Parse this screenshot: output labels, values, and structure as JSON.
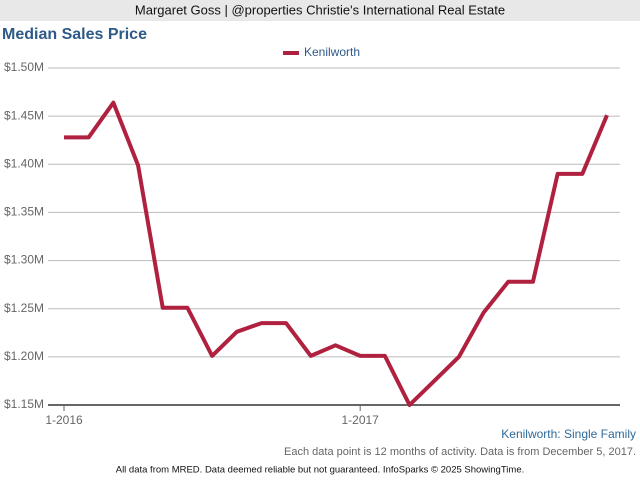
{
  "header": "Margaret Goss | @properties Christie's International Real Estate",
  "chart_data": {
    "type": "line",
    "title": "Median Sales Price",
    "categories": [
      "1-2016",
      null,
      null,
      null,
      null,
      null,
      null,
      null,
      null,
      null,
      null,
      null,
      "1-2017",
      null,
      null,
      null,
      null,
      null,
      null,
      null,
      null,
      null,
      null
    ],
    "series": [
      {
        "name": "Kenilworth",
        "color": "#b0213f",
        "values": [
          1428000,
          1428000,
          1464000,
          1399000,
          1251000,
          1251000,
          1201000,
          1226000,
          1235000,
          1235000,
          1201000,
          1212000,
          1201000,
          1201000,
          1150000,
          1175000,
          1200000,
          1246000,
          1278000,
          1278000,
          1390000,
          1390000,
          1451000
        ]
      }
    ],
    "ylim": [
      1150000,
      1500000
    ],
    "yticks": [
      {
        "value": 1150000,
        "label": "$1.15M"
      },
      {
        "value": 1200000,
        "label": "$1.20M"
      },
      {
        "value": 1250000,
        "label": "$1.25M"
      },
      {
        "value": 1300000,
        "label": "$1.30M"
      },
      {
        "value": 1350000,
        "label": "$1.35M"
      },
      {
        "value": 1400000,
        "label": "$1.40M"
      },
      {
        "value": 1450000,
        "label": "$1.45M"
      },
      {
        "value": 1500000,
        "label": "$1.50M"
      }
    ],
    "grid": true,
    "legend": "top"
  },
  "footer": {
    "segment": "Kenilworth: Single Family",
    "note": "Each data point is 12 months of activity. Data is from December 5, 2017.",
    "disclaimer": "All data from MRED. Data deemed reliable but not guaranteed. InfoSparks © 2025 ShowingTime."
  }
}
